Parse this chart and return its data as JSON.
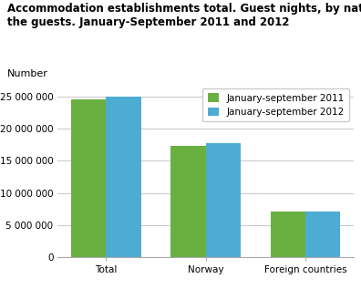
{
  "title": "Accommodation establishments total. Guest nights, by nationality of\nthe guests. January-September 2011 and 2012",
  "ylabel": "Number",
  "categories": [
    "Total",
    "Norway",
    "Foreign countries"
  ],
  "series": [
    {
      "label": "January-september 2011",
      "values": [
        24600000,
        17300000,
        7100000
      ],
      "color": "#6ab040"
    },
    {
      "label": "January-september 2012",
      "values": [
        25000000,
        17800000,
        7050000
      ],
      "color": "#4dacd4"
    }
  ],
  "ylim": [
    0,
    27000000
  ],
  "yticks": [
    0,
    5000000,
    10000000,
    15000000,
    20000000,
    25000000
  ],
  "ytick_labels": [
    "0",
    "5 000 000",
    "10 000 000",
    "15 000 000",
    "20 000 000",
    "25 000 000"
  ],
  "bar_width": 0.35,
  "grid_color": "#cccccc",
  "background_color": "#ffffff",
  "title_fontsize": 8.5,
  "tick_fontsize": 7.5,
  "legend_fontsize": 7.5,
  "ylabel_fontsize": 8
}
